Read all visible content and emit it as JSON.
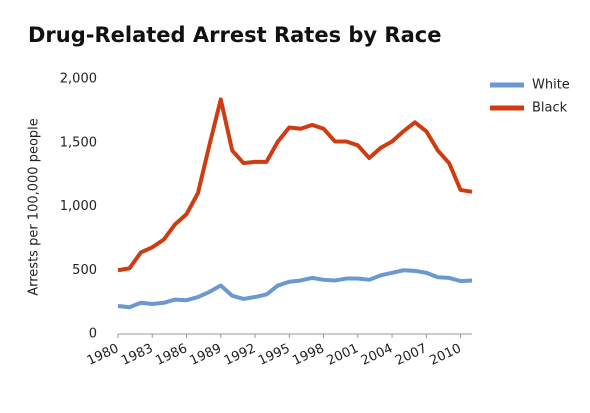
{
  "chart_data": {
    "type": "line",
    "title": "Drug-Related Arrest Rates by Race",
    "y_label": "Arrests per 100,000 people",
    "x": [
      1980,
      1981,
      1982,
      1983,
      1984,
      1985,
      1986,
      1987,
      1988,
      1989,
      1990,
      1991,
      1992,
      1993,
      1994,
      1995,
      1996,
      1997,
      1998,
      1999,
      2000,
      2001,
      2002,
      2003,
      2004,
      2005,
      2006,
      2007,
      2008,
      2009,
      2010,
      2011
    ],
    "series": [
      {
        "name": "White",
        "color": "#6b98d2",
        "values": [
          220,
          210,
          245,
          235,
          245,
          270,
          265,
          290,
          330,
          380,
          300,
          275,
          290,
          310,
          380,
          410,
          420,
          440,
          425,
          420,
          435,
          435,
          425,
          460,
          480,
          500,
          495,
          480,
          445,
          440,
          415,
          420
        ]
      },
      {
        "name": "Black",
        "color": "#cf3c12",
        "values": [
          500,
          515,
          640,
          680,
          740,
          860,
          940,
          1105,
          1480,
          1840,
          1440,
          1340,
          1350,
          1350,
          1510,
          1620,
          1610,
          1640,
          1610,
          1510,
          1510,
          1480,
          1380,
          1460,
          1510,
          1590,
          1660,
          1590,
          1440,
          1340,
          1130,
          1115
        ]
      }
    ],
    "xlim": [
      1980,
      2011
    ],
    "xticks": [
      1980,
      1983,
      1986,
      1989,
      1992,
      1995,
      1998,
      2001,
      2004,
      2007,
      2010
    ],
    "ylim": [
      0,
      2000
    ],
    "yticks": [
      0,
      500,
      {
        "value": 1000,
        "label": "1,000"
      },
      {
        "value": 1500,
        "label": "1,500"
      },
      {
        "value": 2000,
        "label": "2,000"
      }
    ],
    "grid": false,
    "legend": "right"
  }
}
